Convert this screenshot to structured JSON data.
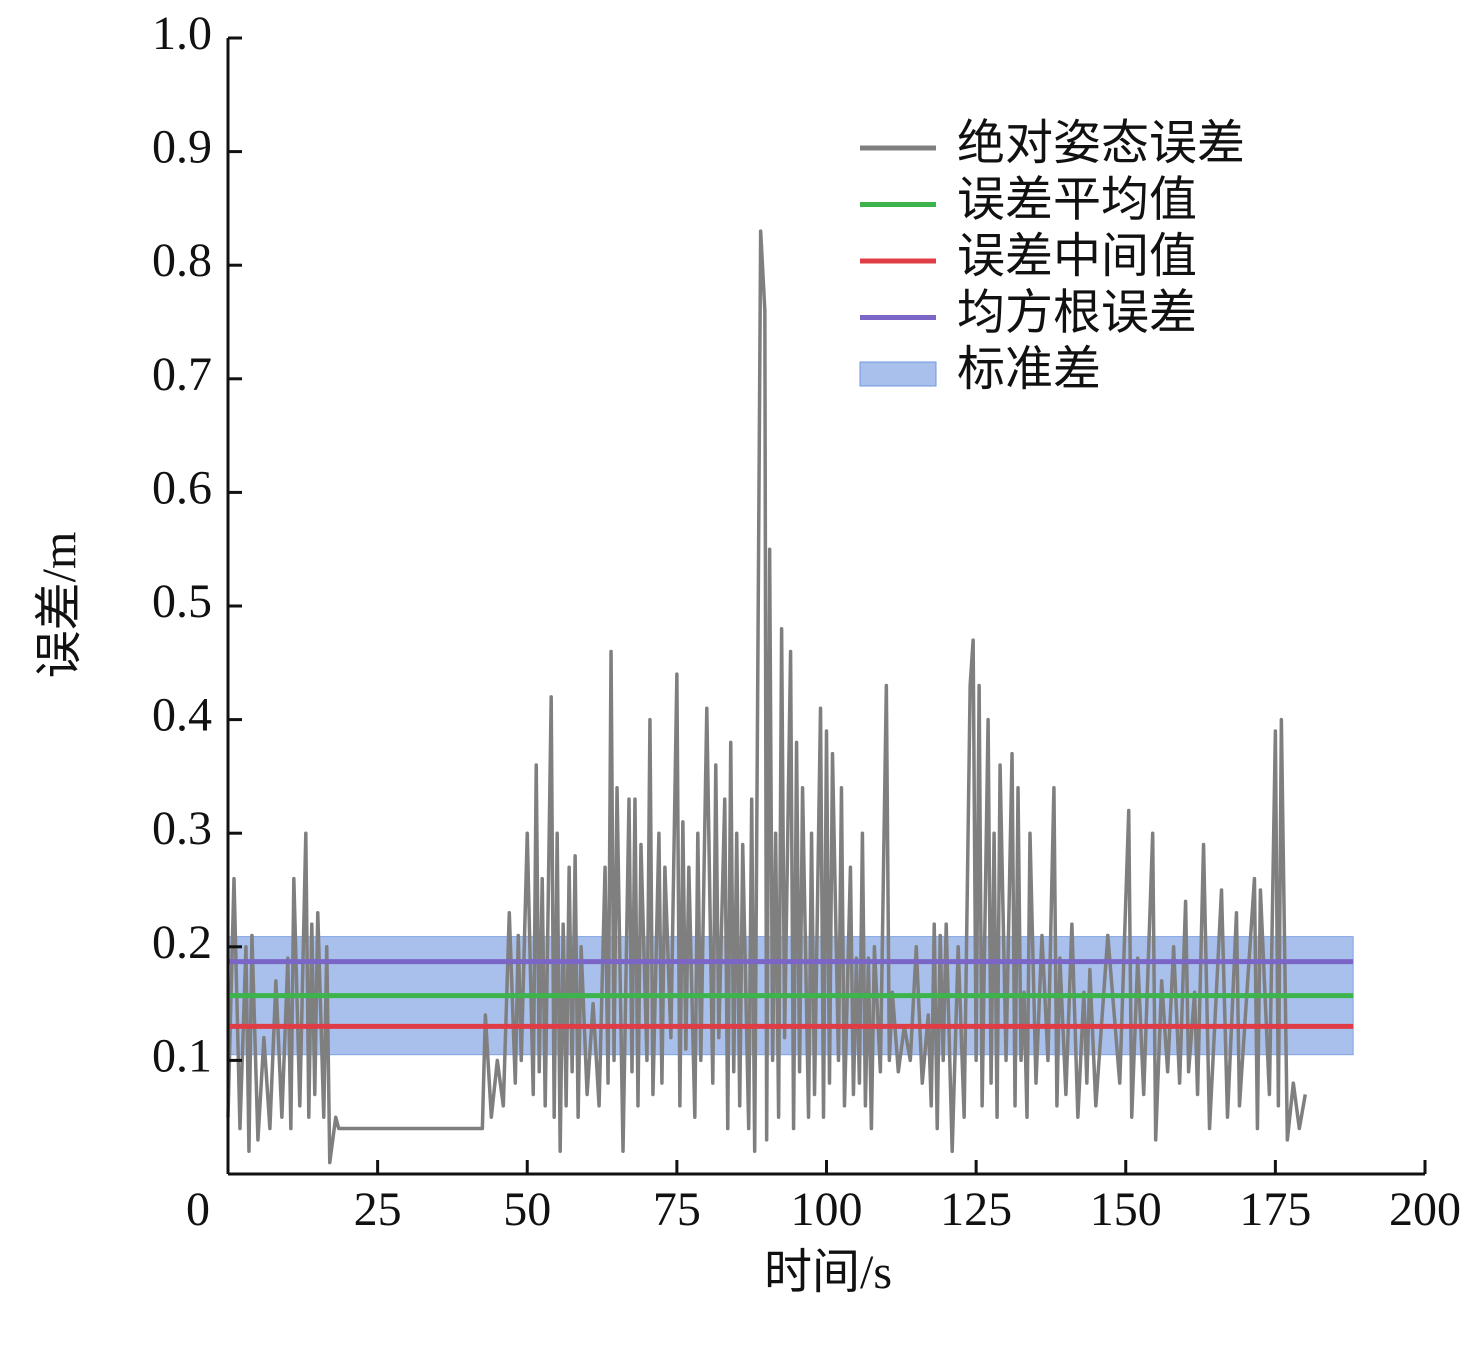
{
  "chart_data": {
    "type": "line",
    "x_label": "时间/s",
    "y_label": "误差/m",
    "xlim": [
      0,
      200
    ],
    "xticks": [
      0,
      25,
      50,
      75,
      100,
      125,
      150,
      175,
      200
    ],
    "ylim": [
      0,
      1
    ],
    "yticks": [
      0.1,
      0.2,
      0.3,
      0.4,
      0.5,
      0.6,
      0.7,
      0.8,
      0.9,
      {
        "value": 1,
        "label": "1.0"
      }
    ],
    "legend": "upper right",
    "series": [
      {
        "name": "绝对姿态误差",
        "color": "#7f7f7f",
        "x": [
          0,
          1,
          2,
          3,
          3.5,
          4,
          5,
          6,
          7,
          8,
          9,
          10,
          10.5,
          11,
          12,
          13,
          13.5,
          14,
          14.5,
          15,
          16,
          16.5,
          17,
          18,
          18.5,
          42.5,
          43,
          44,
          45,
          46,
          47,
          48,
          48.5,
          49,
          50,
          51,
          51.5,
          52,
          52.5,
          53,
          54,
          54.5,
          55,
          55.5,
          56,
          56.5,
          57,
          57.5,
          58,
          58.5,
          59,
          60,
          61,
          62,
          63,
          63.5,
          64,
          64.5,
          65,
          66,
          67,
          67.5,
          68,
          68.5,
          69,
          70,
          70.5,
          71,
          72,
          72.5,
          73,
          74,
          75,
          75.5,
          76,
          76.5,
          77,
          78,
          78.5,
          79,
          80,
          81,
          81.5,
          82,
          83,
          83.5,
          84,
          84.5,
          85,
          85.5,
          86,
          87,
          87.5,
          88,
          89,
          89.7,
          90,
          90.5,
          91,
          91.5,
          92,
          92.5,
          93,
          94,
          94.5,
          95,
          95.5,
          96,
          97,
          97.5,
          98,
          99,
          99.5,
          100,
          100.5,
          101,
          102,
          102.5,
          103,
          104,
          104.5,
          105,
          105.5,
          106,
          106.5,
          107,
          107.5,
          108,
          109,
          110,
          110.5,
          111,
          112,
          113,
          114,
          115,
          116,
          117,
          117.5,
          118,
          118.5,
          119,
          119.5,
          120,
          121,
          122,
          123,
          124,
          124.5,
          125,
          125.5,
          126,
          127,
          127.5,
          128,
          128.5,
          129,
          130,
          131,
          131.5,
          132,
          132.5,
          133,
          133.5,
          134,
          135,
          136,
          137,
          138,
          138.5,
          139,
          140,
          141,
          142,
          143,
          143.5,
          144,
          145,
          147,
          149,
          150.5,
          151,
          152,
          153,
          154.5,
          155,
          156,
          157,
          158,
          159,
          160,
          160.5,
          161.5,
          162,
          163,
          164,
          166,
          167,
          168.5,
          169,
          171.5,
          172,
          172.5,
          174,
          175,
          175.5,
          176,
          177,
          178,
          179,
          180
        ],
        "values": [
          0.05,
          0.26,
          0.04,
          0.2,
          0.02,
          0.21,
          0.03,
          0.12,
          0.04,
          0.17,
          0.05,
          0.19,
          0.04,
          0.26,
          0.06,
          0.3,
          0.05,
          0.22,
          0.07,
          0.23,
          0.05,
          0.2,
          0.01,
          0.05,
          0.04,
          0.04,
          0.14,
          0.05,
          0.1,
          0.06,
          0.23,
          0.08,
          0.21,
          0.1,
          0.3,
          0.07,
          0.36,
          0.09,
          0.26,
          0.06,
          0.42,
          0.05,
          0.3,
          0.02,
          0.22,
          0.06,
          0.27,
          0.09,
          0.28,
          0.05,
          0.2,
          0.07,
          0.15,
          0.06,
          0.27,
          0.08,
          0.46,
          0.1,
          0.34,
          0.02,
          0.33,
          0.09,
          0.33,
          0.06,
          0.29,
          0.1,
          0.4,
          0.07,
          0.3,
          0.08,
          0.27,
          0.12,
          0.44,
          0.06,
          0.31,
          0.11,
          0.27,
          0.05,
          0.3,
          0.1,
          0.41,
          0.08,
          0.36,
          0.12,
          0.33,
          0.04,
          0.38,
          0.09,
          0.3,
          0.06,
          0.29,
          0.04,
          0.33,
          0.02,
          0.83,
          0.76,
          0.03,
          0.55,
          0.1,
          0.3,
          0.05,
          0.48,
          0.12,
          0.46,
          0.04,
          0.38,
          0.09,
          0.34,
          0.05,
          0.3,
          0.07,
          0.41,
          0.05,
          0.39,
          0.08,
          0.37,
          0.1,
          0.34,
          0.06,
          0.27,
          0.07,
          0.19,
          0.08,
          0.3,
          0.06,
          0.19,
          0.04,
          0.2,
          0.09,
          0.43,
          0.1,
          0.16,
          0.09,
          0.13,
          0.1,
          0.2,
          0.08,
          0.14,
          0.06,
          0.22,
          0.04,
          0.21,
          0.1,
          0.22,
          0.02,
          0.2,
          0.05,
          0.43,
          0.47,
          0.1,
          0.43,
          0.06,
          0.4,
          0.08,
          0.3,
          0.05,
          0.36,
          0.1,
          0.37,
          0.06,
          0.34,
          0.1,
          0.16,
          0.05,
          0.3,
          0.08,
          0.21,
          0.1,
          0.34,
          0.06,
          0.19,
          0.07,
          0.22,
          0.05,
          0.16,
          0.08,
          0.18,
          0.06,
          0.21,
          0.08,
          0.32,
          0.05,
          0.19,
          0.07,
          0.3,
          0.03,
          0.17,
          0.09,
          0.2,
          0.08,
          0.24,
          0.09,
          0.16,
          0.07,
          0.29,
          0.04,
          0.25,
          0.05,
          0.23,
          0.06,
          0.26,
          0.04,
          0.25,
          0.07,
          0.39,
          0.06,
          0.4,
          0.03,
          0.08,
          0.04,
          0.07
        ]
      },
      {
        "name": "误差平均值",
        "color": "#3cb44b",
        "x": [
          0,
          188
        ],
        "values": [
          0.157,
          0.157
        ]
      },
      {
        "name": "误差中间值",
        "color": "#e03c46",
        "x": [
          0,
          188
        ],
        "values": [
          0.13,
          0.13
        ]
      },
      {
        "name": "均方根误差",
        "color": "#7b66c8",
        "x": [
          0,
          188
        ],
        "values": [
          0.187,
          0.187
        ]
      }
    ],
    "band": {
      "name": "标准差",
      "color": "#6f96e0",
      "x": [
        0,
        188
      ],
      "lower": 0.105,
      "upper": 0.209
    }
  }
}
